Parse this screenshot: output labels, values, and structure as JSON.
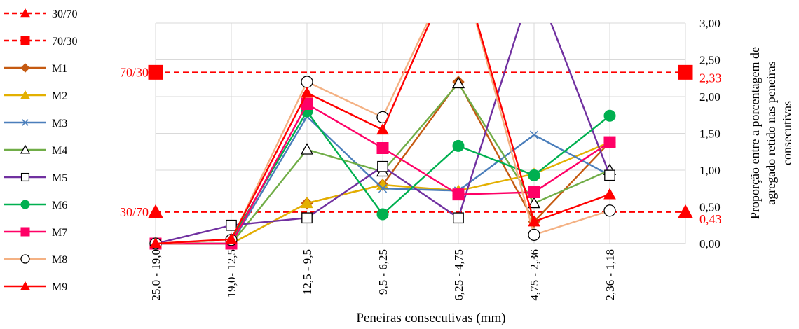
{
  "chart_data": {
    "type": "line",
    "title": "",
    "xlabel": "Peneiras consecutivas (mm)",
    "ylabel": "Proporção entre a porcentagem de agregado retido nas peneiras consecutivas",
    "ylabel_lines": [
      "Proporção entre a porcentagem de",
      "agregado retido nas peneiras",
      "consecutivas"
    ],
    "y_axis_side": "right",
    "ylim": [
      0,
      3
    ],
    "y_ticks": [
      "0,00",
      "0,50",
      "1,00",
      "1,50",
      "2,00",
      "2,50",
      "3,00"
    ],
    "grid": true,
    "legend_position": "left",
    "categories": [
      "25,0 - 19,0",
      "19,0- 12,5",
      "12,5 - 9,5",
      "9,5 - 6,25",
      "6,25 - 4,75",
      "4,75 - 2,36",
      "2,36 - 1,18"
    ],
    "reference_lines": [
      {
        "name": "30/70",
        "value": 0.43,
        "color": "#ff0000",
        "marker": "triangle",
        "left_label": "30/70",
        "right_label": "0,43"
      },
      {
        "name": "70/30",
        "value": 2.33,
        "color": "#ff0000",
        "marker": "square",
        "left_label": "70/30",
        "right_label": "2,33"
      }
    ],
    "series": [
      {
        "name": "M1",
        "color": "#c55a11",
        "marker": "diamond",
        "values": [
          0,
          0,
          0.55,
          0.8,
          2.2,
          0.3,
          1.38
        ]
      },
      {
        "name": "M2",
        "color": "#e3b000",
        "marker": "triangle",
        "values": [
          0,
          0,
          0.55,
          0.8,
          0.72,
          0.95,
          1.38
        ]
      },
      {
        "name": "M3",
        "color": "#4a7ebb",
        "marker": "x",
        "values": [
          0,
          0,
          1.73,
          0.75,
          0.72,
          1.48,
          0.93
        ]
      },
      {
        "name": "M4",
        "color": "#70ad47",
        "marker": "triangle-open",
        "values": [
          0,
          0,
          1.28,
          0.98,
          2.18,
          0.55,
          1.0
        ]
      },
      {
        "name": "M5",
        "color": "#7030a0",
        "marker": "square-open",
        "values": [
          0,
          0.25,
          0.35,
          1.05,
          0.35,
          3.6,
          0.93
        ]
      },
      {
        "name": "M6",
        "color": "#00b050",
        "marker": "circle",
        "values": [
          0,
          0.05,
          1.8,
          0.4,
          1.33,
          0.93,
          1.74
        ]
      },
      {
        "name": "M7",
        "color": "#ff0066",
        "marker": "square",
        "values": [
          0,
          0,
          1.9,
          1.3,
          0.67,
          0.7,
          1.38
        ]
      },
      {
        "name": "M8",
        "color": "#f4b183",
        "marker": "circle-open",
        "values": [
          0,
          0.05,
          2.2,
          1.72,
          3.9,
          0.12,
          0.45
        ]
      },
      {
        "name": "M9",
        "color": "#ff0000",
        "marker": "triangle",
        "values": [
          0,
          0.06,
          2.05,
          1.55,
          3.9,
          0.3,
          0.67
        ]
      }
    ]
  }
}
